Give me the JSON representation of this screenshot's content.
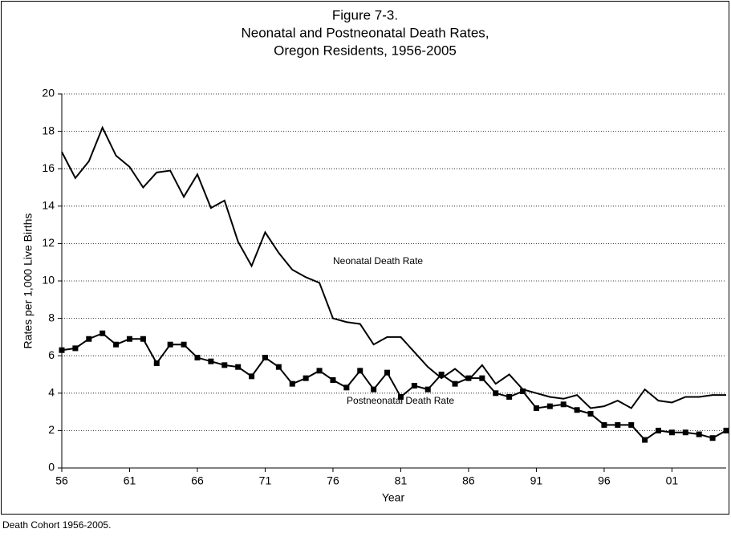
{
  "chart_data": {
    "type": "line",
    "title": [
      "Figure 7-3.",
      "Neonatal and Postneonatal Death Rates,",
      "Oregon Residents, 1956-2005"
    ],
    "x_label": "Year",
    "y_label": "Rates per 1,000 Live Births",
    "footnote": "Death Cohort 1956-2005.",
    "categories": [
      "56",
      null,
      null,
      null,
      null,
      "61",
      null,
      null,
      null,
      null,
      "66",
      null,
      null,
      null,
      null,
      "71",
      null,
      null,
      null,
      null,
      "76",
      null,
      null,
      null,
      null,
      "81",
      null,
      null,
      null,
      null,
      "86",
      null,
      null,
      null,
      null,
      "91",
      null,
      null,
      null,
      null,
      "96",
      null,
      null,
      null,
      null,
      "01",
      null,
      null,
      null,
      null
    ],
    "series": [
      {
        "name": "Neonatal Death Rate",
        "color": "#000000",
        "marker": false,
        "values": [
          16.9,
          15.5,
          16.4,
          18.2,
          16.7,
          16.1,
          15.0,
          15.8,
          15.9,
          14.5,
          15.7,
          13.9,
          14.3,
          12.1,
          10.8,
          12.6,
          11.5,
          10.6,
          10.2,
          9.9,
          8.0,
          7.8,
          7.7,
          6.6,
          7.0,
          7.0,
          6.2,
          5.4,
          4.8,
          5.3,
          4.7,
          5.5,
          4.5,
          5.0,
          4.2,
          4.0,
          3.8,
          3.7,
          3.9,
          3.2,
          3.3,
          3.6,
          3.2,
          4.2,
          3.6,
          3.5,
          3.8,
          3.8,
          3.9,
          3.9
        ]
      },
      {
        "name": "Postneonatal Death Rate",
        "color": "#000000",
        "marker": true,
        "values": [
          6.3,
          6.4,
          6.9,
          7.2,
          6.6,
          6.9,
          6.9,
          5.6,
          6.6,
          6.6,
          5.9,
          5.7,
          5.5,
          5.4,
          4.9,
          5.9,
          5.4,
          4.5,
          4.8,
          5.2,
          4.7,
          4.3,
          5.2,
          4.2,
          5.1,
          3.8,
          4.4,
          4.2,
          5.0,
          4.5,
          4.8,
          4.8,
          4.0,
          3.8,
          4.1,
          3.2,
          3.3,
          3.4,
          3.1,
          2.9,
          2.3,
          2.3,
          2.3,
          1.5,
          2.0,
          1.9,
          1.9,
          1.8,
          1.6,
          2.0
        ]
      }
    ],
    "ylim": [
      0,
      20
    ],
    "yticks": [
      0,
      2,
      4,
      6,
      8,
      10,
      12,
      14,
      16,
      18,
      20
    ],
    "grid": true
  }
}
